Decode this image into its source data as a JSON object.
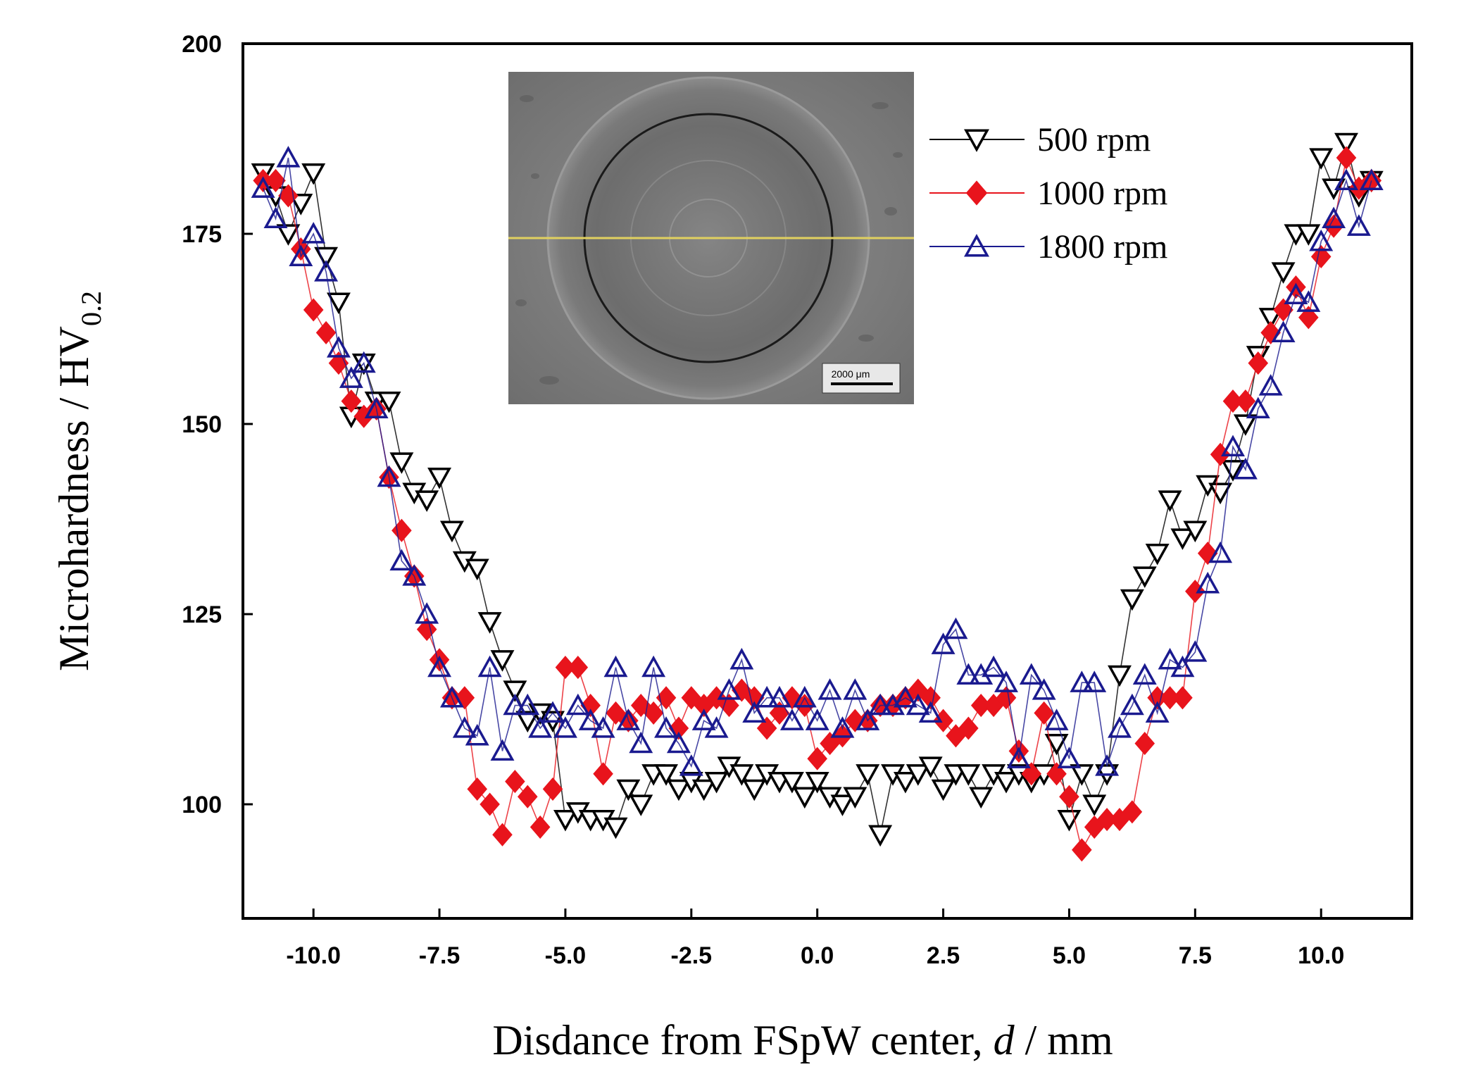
{
  "chart_data": {
    "type": "scatter",
    "title": "",
    "xlabel_prefix": "Disdance from FSpW center, ",
    "xlabel_var": "d",
    "xlabel_suffix": " / mm",
    "ylabel_main": "Microhardness / HV",
    "ylabel_sub": "0.2",
    "xlim": [
      -11.4,
      11.8
    ],
    "ylim": [
      85,
      200
    ],
    "xticks": [
      -10.0,
      -7.5,
      -5.0,
      -2.5,
      0.0,
      2.5,
      5.0,
      7.5,
      10.0
    ],
    "xtick_labels": [
      "-10.0",
      "-7.5",
      "-5.0",
      "-2.5",
      "0.0",
      "2.5",
      "5.0",
      "7.5",
      "10.0"
    ],
    "yticks": [
      100,
      125,
      150,
      175,
      200
    ],
    "ytick_labels": [
      "100",
      "125",
      "150",
      "175",
      "200"
    ],
    "legend_position": "top-right",
    "inset": {
      "description": "weld cross-section micrograph",
      "scale_bar_label": "2000 μm"
    },
    "series": [
      {
        "name": "500 rpm",
        "marker": "triangle-down",
        "color": "#000000",
        "fill": "none",
        "x": [
          -11.0,
          -10.75,
          -10.5,
          -10.25,
          -10.0,
          -9.75,
          -9.5,
          -9.25,
          -9.0,
          -8.75,
          -8.5,
          -8.25,
          -8.0,
          -7.75,
          -7.5,
          -7.25,
          -7.0,
          -6.75,
          -6.5,
          -6.25,
          -6.0,
          -5.75,
          -5.5,
          -5.25,
          -5.0,
          -4.75,
          -4.5,
          -4.25,
          -4.0,
          -3.75,
          -3.5,
          -3.25,
          -3.0,
          -2.75,
          -2.5,
          -2.25,
          -2.0,
          -1.75,
          -1.5,
          -1.25,
          -1.0,
          -0.75,
          -0.5,
          -0.25,
          0.0,
          0.25,
          0.5,
          0.75,
          1.0,
          1.25,
          1.5,
          1.75,
          2.0,
          2.25,
          2.5,
          2.75,
          3.0,
          3.25,
          3.5,
          3.75,
          4.0,
          4.25,
          4.5,
          4.75,
          5.0,
          5.25,
          5.5,
          5.75,
          6.0,
          6.25,
          6.5,
          6.75,
          7.0,
          7.25,
          7.5,
          7.75,
          8.0,
          8.25,
          8.5,
          8.75,
          9.0,
          9.25,
          9.5,
          9.75,
          10.0,
          10.25,
          10.5,
          10.75,
          11.0
        ],
        "y": [
          183,
          180,
          175,
          179,
          183,
          172,
          166,
          151,
          158,
          153,
          153,
          145,
          141,
          140,
          143,
          136,
          132,
          131,
          124,
          119,
          115,
          111,
          112,
          111,
          98,
          99,
          98,
          98,
          97,
          102,
          100,
          104,
          104,
          102,
          103,
          102,
          103,
          105,
          104,
          102,
          104,
          103,
          103,
          101,
          103,
          101,
          100,
          101,
          104,
          96,
          104,
          103,
          104,
          105,
          102,
          104,
          104,
          101,
          104,
          103,
          104,
          103,
          104,
          108,
          98,
          104,
          100,
          104,
          117,
          127,
          130,
          133,
          140,
          135,
          136,
          142,
          141,
          144,
          150,
          159,
          164,
          170,
          175,
          175,
          185,
          181,
          187,
          180,
          182
        ]
      },
      {
        "name": "1000 rpm",
        "marker": "diamond",
        "color": "#e8141c",
        "fill": "#e8141c",
        "x": [
          -11.0,
          -10.75,
          -10.5,
          -10.25,
          -10.0,
          -9.75,
          -9.5,
          -9.25,
          -9.0,
          -8.75,
          -8.5,
          -8.25,
          -8.0,
          -7.75,
          -7.5,
          -7.25,
          -7.0,
          -6.75,
          -6.5,
          -6.25,
          -6.0,
          -5.75,
          -5.5,
          -5.25,
          -5.0,
          -4.75,
          -4.5,
          -4.25,
          -4.0,
          -3.75,
          -3.5,
          -3.25,
          -3.0,
          -2.75,
          -2.5,
          -2.25,
          -2.0,
          -1.75,
          -1.5,
          -1.25,
          -1.0,
          -0.75,
          -0.5,
          -0.25,
          0.0,
          0.25,
          0.5,
          0.75,
          1.0,
          1.25,
          1.5,
          1.75,
          2.0,
          2.25,
          2.5,
          2.75,
          3.0,
          3.25,
          3.5,
          3.75,
          4.0,
          4.25,
          4.5,
          4.75,
          5.0,
          5.25,
          5.5,
          5.75,
          6.0,
          6.25,
          6.5,
          6.75,
          7.0,
          7.25,
          7.5,
          7.75,
          8.0,
          8.25,
          8.5,
          8.75,
          9.0,
          9.25,
          9.5,
          9.75,
          10.0,
          10.25,
          10.5,
          10.75,
          11.0
        ],
        "y": [
          182,
          182,
          180,
          173,
          165,
          162,
          158,
          153,
          151,
          152,
          143,
          136,
          130,
          123,
          119,
          114,
          114,
          102,
          100,
          96,
          103,
          101,
          97,
          102,
          118,
          118,
          113,
          104,
          112,
          111,
          113,
          112,
          114,
          110,
          114,
          113,
          114,
          113,
          115,
          114,
          110,
          112,
          114,
          113,
          106,
          108,
          109,
          111,
          111,
          113,
          113,
          114,
          115,
          114,
          111,
          109,
          110,
          113,
          113,
          114,
          107,
          104,
          112,
          104,
          101,
          94,
          97,
          98,
          98,
          99,
          108,
          114,
          114,
          114,
          128,
          133,
          146,
          153,
          153,
          158,
          162,
          165,
          168,
          164,
          172,
          176,
          185,
          181,
          182
        ]
      },
      {
        "name": "1800 rpm",
        "marker": "triangle-up",
        "color": "#1a1a8f",
        "fill": "none",
        "x": [
          -11.0,
          -10.75,
          -10.5,
          -10.25,
          -10.0,
          -9.75,
          -9.5,
          -9.25,
          -9.0,
          -8.75,
          -8.5,
          -8.25,
          -8.0,
          -7.75,
          -7.5,
          -7.25,
          -7.0,
          -6.75,
          -6.5,
          -6.25,
          -6.0,
          -5.75,
          -5.5,
          -5.25,
          -5.0,
          -4.75,
          -4.5,
          -4.25,
          -4.0,
          -3.75,
          -3.5,
          -3.25,
          -3.0,
          -2.75,
          -2.5,
          -2.25,
          -2.0,
          -1.75,
          -1.5,
          -1.25,
          -1.0,
          -0.75,
          -0.5,
          -0.25,
          0.0,
          0.25,
          0.5,
          0.75,
          1.0,
          1.25,
          1.5,
          1.75,
          2.0,
          2.25,
          2.5,
          2.75,
          3.0,
          3.25,
          3.5,
          3.75,
          4.0,
          4.25,
          4.5,
          4.75,
          5.0,
          5.25,
          5.5,
          5.75,
          6.0,
          6.25,
          6.5,
          6.75,
          7.0,
          7.25,
          7.5,
          7.75,
          8.0,
          8.25,
          8.5,
          8.75,
          9.0,
          9.25,
          9.5,
          9.75,
          10.0,
          10.25,
          10.5,
          10.75,
          11.0
        ],
        "y": [
          181,
          177,
          185,
          172,
          175,
          170,
          160,
          156,
          158,
          152,
          143,
          132,
          130,
          125,
          118,
          114,
          110,
          109,
          118,
          107,
          113,
          113,
          110,
          112,
          110,
          113,
          111,
          110,
          118,
          111,
          108,
          118,
          110,
          108,
          105,
          111,
          110,
          115,
          119,
          112,
          114,
          114,
          111,
          114,
          111,
          115,
          110,
          115,
          111,
          113,
          113,
          114,
          113,
          112,
          121,
          123,
          117,
          117,
          118,
          116,
          106,
          117,
          115,
          111,
          106,
          116,
          116,
          105,
          110,
          113,
          117,
          112,
          119,
          118,
          120,
          129,
          133,
          147,
          144,
          152,
          155,
          162,
          167,
          166,
          174,
          177,
          182,
          176,
          182
        ]
      }
    ]
  }
}
